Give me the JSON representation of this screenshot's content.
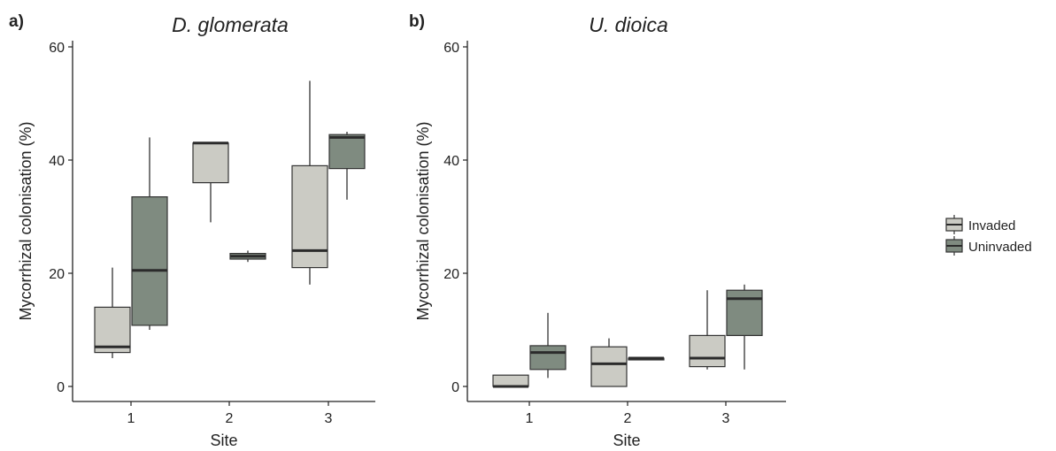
{
  "chart_data": [
    {
      "type": "box",
      "panel_label": "a)",
      "title": "D. glomerata",
      "xlabel": "Site",
      "ylabel": "Mycorrhizal colonisation (%)",
      "ylim": [
        0,
        60
      ],
      "yticks": [
        0,
        20,
        40,
        60
      ],
      "categories": [
        "1",
        "2",
        "3"
      ],
      "series": [
        {
          "name": "Invaded",
          "color": "#cbcbc4",
          "boxes": [
            {
              "whisker_low": 5,
              "q1": 6,
              "median": 7,
              "q3": 14,
              "whisker_high": 21
            },
            {
              "whisker_low": 29,
              "q1": 36,
              "median": 43,
              "q3": 43,
              "whisker_high": 43
            },
            {
              "whisker_low": 18,
              "q1": 21,
              "median": 24,
              "q3": 39,
              "whisker_high": 54
            }
          ]
        },
        {
          "name": "Uninvaded",
          "color": "#7f8b80",
          "boxes": [
            {
              "whisker_low": 10,
              "q1": 10.8,
              "median": 20.5,
              "q3": 33.5,
              "whisker_high": 44
            },
            {
              "whisker_low": 22,
              "q1": 22.5,
              "median": 23,
              "q3": 23.5,
              "whisker_high": 24
            },
            {
              "whisker_low": 33,
              "q1": 38.5,
              "median": 44,
              "q3": 44.5,
              "whisker_high": 45
            }
          ]
        }
      ]
    },
    {
      "type": "box",
      "panel_label": "b)",
      "title": "U. dioica",
      "xlabel": "Site",
      "ylabel": "Mycorrhizal colonisation (%)",
      "ylim": [
        0,
        60
      ],
      "yticks": [
        0,
        20,
        40,
        60
      ],
      "categories": [
        "1",
        "2",
        "3"
      ],
      "series": [
        {
          "name": "Invaded",
          "color": "#cbcbc4",
          "boxes": [
            {
              "whisker_low": 0,
              "q1": 0,
              "median": 0,
              "q3": 2,
              "whisker_high": 2
            },
            {
              "whisker_low": 0,
              "q1": 0,
              "median": 4,
              "q3": 7,
              "whisker_high": 8.5
            },
            {
              "whisker_low": 3,
              "q1": 3.5,
              "median": 5,
              "q3": 9,
              "whisker_high": 17
            }
          ]
        },
        {
          "name": "Uninvaded",
          "color": "#7f8b80",
          "boxes": [
            {
              "whisker_low": 1.5,
              "q1": 3,
              "median": 6,
              "q3": 7.2,
              "whisker_high": 13
            },
            {
              "whisker_low": 5,
              "q1": 5,
              "median": 5,
              "q3": 5,
              "whisker_high": 5
            },
            {
              "whisker_low": 3,
              "q1": 9,
              "median": 15.5,
              "q3": 17,
              "whisker_high": 18
            }
          ]
        }
      ]
    }
  ],
  "legend": {
    "items": [
      {
        "label": "Invaded",
        "color": "#cbcbc4"
      },
      {
        "label": "Uninvaded",
        "color": "#7f8b80"
      }
    ]
  }
}
